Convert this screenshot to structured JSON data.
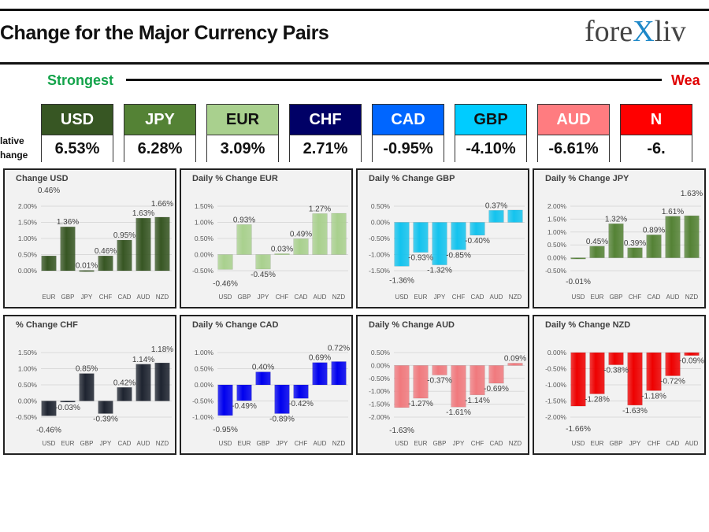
{
  "header": {
    "title": "Change for the Major Currency Pairs",
    "logo_text_left": "fore",
    "logo_text_x": "X",
    "logo_text_right": "liv",
    "strongest_label": "Strongest",
    "weakest_label": "Wea",
    "side_label_1": "lative",
    "side_label_2": "hange"
  },
  "ranking": [
    {
      "currency": "USD",
      "value": "6.53%",
      "color": "#375623",
      "text_color": "#ffffff"
    },
    {
      "currency": "JPY",
      "value": "6.28%",
      "color": "#548235",
      "text_color": "#ffffff"
    },
    {
      "currency": "EUR",
      "value": "3.09%",
      "color": "#a9d08e",
      "text_color": "#111111"
    },
    {
      "currency": "CHF",
      "value": "2.71%",
      "color": "#000066",
      "text_color": "#ffffff"
    },
    {
      "currency": "CAD",
      "value": "-0.95%",
      "color": "#0066ff",
      "text_color": "#ffffff"
    },
    {
      "currency": "GBP",
      "value": "-4.10%",
      "color": "#00ccff",
      "text_color": "#111111"
    },
    {
      "currency": "AUD",
      "value": "-6.61%",
      "color": "#ff7c80",
      "text_color": "#ffffff"
    },
    {
      "currency": "N",
      "value": "-6.",
      "color": "#ff0000",
      "text_color": "#ffffff"
    }
  ],
  "chart_data": [
    {
      "type": "bar",
      "title": "Change USD",
      "categories": [
        "EUR",
        "GBP",
        "JPY",
        "CHF",
        "CAD",
        "AUD",
        "NZD"
      ],
      "values": [
        0.46,
        1.36,
        0.01,
        0.46,
        0.95,
        1.63,
        1.66
      ],
      "ylim": [
        0,
        2.0
      ],
      "ticks": [
        0,
        0.5,
        1.0,
        1.5,
        2.0
      ],
      "color": "#375623"
    },
    {
      "type": "bar",
      "title": "Daily % Change EUR",
      "categories": [
        "USD",
        "GBP",
        "JPY",
        "CHF",
        "CAD",
        "AUD",
        "NZD"
      ],
      "values": [
        -0.46,
        0.93,
        -0.45,
        0.03,
        0.49,
        1.27,
        1.28
      ],
      "ylim": [
        -0.5,
        1.5
      ],
      "ticks": [
        -0.5,
        0,
        0.5,
        1.0,
        1.5
      ],
      "color": "#a9d08e"
    },
    {
      "type": "bar",
      "title": "Daily % Change GBP",
      "categories": [
        "USD",
        "EUR",
        "JPY",
        "CHF",
        "CAD",
        "AUD",
        "NZD"
      ],
      "values": [
        -1.36,
        -0.93,
        -1.32,
        -0.85,
        -0.4,
        0.37,
        0.38
      ],
      "ylim": [
        -1.5,
        0.5
      ],
      "ticks": [
        -1.5,
        -1.0,
        -0.5,
        0,
        0.5
      ],
      "color": "#14c3ee"
    },
    {
      "type": "bar",
      "title": "Daily % Change JPY",
      "categories": [
        "USD",
        "EUR",
        "GBP",
        "CHF",
        "CAD",
        "AUD",
        "NZD"
      ],
      "values": [
        -0.01,
        0.45,
        1.32,
        0.39,
        0.89,
        1.61,
        1.63
      ],
      "ylim": [
        -0.5,
        2.0
      ],
      "ticks": [
        -0.5,
        0,
        0.5,
        1.0,
        1.5,
        2.0
      ],
      "color": "#548235"
    },
    {
      "type": "bar",
      "title": "% Change CHF",
      "categories": [
        "USD",
        "EUR",
        "GBP",
        "JPY",
        "CAD",
        "AUD",
        "NZD"
      ],
      "values": [
        -0.46,
        -0.03,
        0.85,
        -0.39,
        0.42,
        1.14,
        1.18
      ],
      "ylim": [
        -0.5,
        1.5
      ],
      "ticks": [
        -0.5,
        0,
        0.5,
        1.0,
        1.5
      ],
      "color": "#1e2430"
    },
    {
      "type": "bar",
      "title": "Daily % Change CAD",
      "categories": [
        "USD",
        "EUR",
        "GBP",
        "JPY",
        "CHF",
        "AUD",
        "NZD"
      ],
      "values": [
        -0.95,
        -0.49,
        0.4,
        -0.89,
        -0.42,
        0.69,
        0.72
      ],
      "ylim": [
        -1.0,
        1.0
      ],
      "ticks": [
        -1.0,
        -0.5,
        0,
        0.5,
        1.0
      ],
      "color": "#0000ee"
    },
    {
      "type": "bar",
      "title": "Daily % Change AUD",
      "categories": [
        "USD",
        "EUR",
        "GBP",
        "JPY",
        "CHF",
        "CAD",
        "NZD"
      ],
      "values": [
        -1.63,
        -1.27,
        -0.37,
        -1.61,
        -1.14,
        -0.69,
        0.09
      ],
      "ylim": [
        -2.0,
        0.5
      ],
      "ticks": [
        -2.0,
        -1.5,
        -1.0,
        -0.5,
        0,
        0.5
      ],
      "color": "#f07a7e"
    },
    {
      "type": "bar",
      "title": "Daily % Change NZD",
      "categories": [
        "USD",
        "EUR",
        "GBP",
        "JPY",
        "CHF",
        "CAD",
        "AUD"
      ],
      "values": [
        -1.66,
        -1.28,
        -0.38,
        -1.63,
        -1.18,
        -0.72,
        -0.09
      ],
      "ylim": [
        -2.0,
        0.0
      ],
      "ticks": [
        -2.0,
        -1.5,
        -1.0,
        -0.5,
        0
      ],
      "color": "#ee0000"
    }
  ]
}
